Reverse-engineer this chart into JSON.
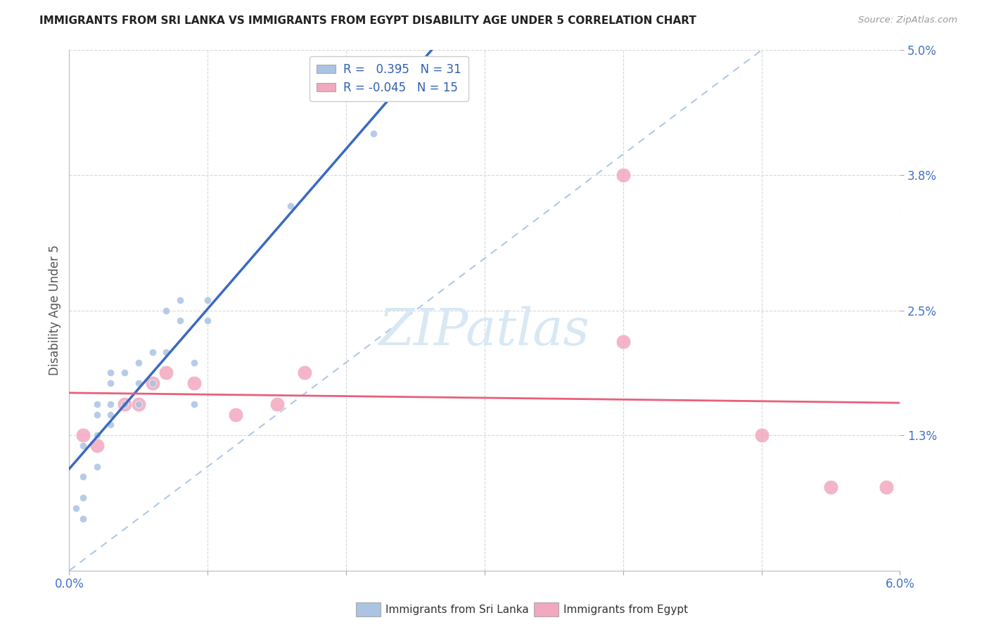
{
  "title": "IMMIGRANTS FROM SRI LANKA VS IMMIGRANTS FROM EGYPT DISABILITY AGE UNDER 5 CORRELATION CHART",
  "source": "Source: ZipAtlas.com",
  "ylabel": "Disability Age Under 5",
  "xlim": [
    0.0,
    0.06
  ],
  "ylim": [
    0.0,
    0.05
  ],
  "xticks": [
    0.0,
    0.01,
    0.02,
    0.03,
    0.04,
    0.05,
    0.06
  ],
  "xtick_labels": [
    "0.0%",
    "",
    "",
    "",
    "",
    "",
    "6.0%"
  ],
  "ytick_positions": [
    0.013,
    0.025,
    0.038,
    0.05
  ],
  "ytick_labels": [
    "1.3%",
    "2.5%",
    "3.8%",
    "5.0%"
  ],
  "sri_lanka_r": 0.395,
  "sri_lanka_n": 31,
  "egypt_r": -0.045,
  "egypt_n": 15,
  "sri_lanka_color": "#aac4e2",
  "egypt_color": "#f2a8be",
  "sri_lanka_line_color": "#3a6abf",
  "egypt_line_color": "#e8607a",
  "diagonal_color": "#b0c8e8",
  "watermark_color": "#d8e8f4",
  "sri_lanka_x": [
    0.0005,
    0.001,
    0.001,
    0.001,
    0.001,
    0.002,
    0.002,
    0.002,
    0.002,
    0.003,
    0.003,
    0.003,
    0.003,
    0.003,
    0.004,
    0.004,
    0.005,
    0.005,
    0.005,
    0.006,
    0.006,
    0.007,
    0.007,
    0.008,
    0.008,
    0.009,
    0.009,
    0.01,
    0.01,
    0.016,
    0.022
  ],
  "sri_lanka_y": [
    0.006,
    0.005,
    0.007,
    0.009,
    0.012,
    0.01,
    0.013,
    0.015,
    0.016,
    0.014,
    0.015,
    0.016,
    0.018,
    0.019,
    0.016,
    0.019,
    0.016,
    0.018,
    0.02,
    0.018,
    0.021,
    0.021,
    0.025,
    0.024,
    0.026,
    0.016,
    0.02,
    0.024,
    0.026,
    0.035,
    0.042
  ],
  "egypt_x": [
    0.001,
    0.002,
    0.004,
    0.005,
    0.006,
    0.007,
    0.009,
    0.012,
    0.015,
    0.017,
    0.04,
    0.04,
    0.05,
    0.055,
    0.059
  ],
  "egypt_y": [
    0.013,
    0.012,
    0.016,
    0.016,
    0.018,
    0.019,
    0.018,
    0.015,
    0.016,
    0.019,
    0.022,
    0.038,
    0.013,
    0.008,
    0.008
  ],
  "sri_lanka_size": 55,
  "egypt_size": 220,
  "background_color": "#ffffff",
  "grid_color": "#d8d8d8",
  "legend_fontsize": 12,
  "tick_color": "#4472c4",
  "title_color": "#222222",
  "source_color": "#999999",
  "ylabel_color": "#555555"
}
